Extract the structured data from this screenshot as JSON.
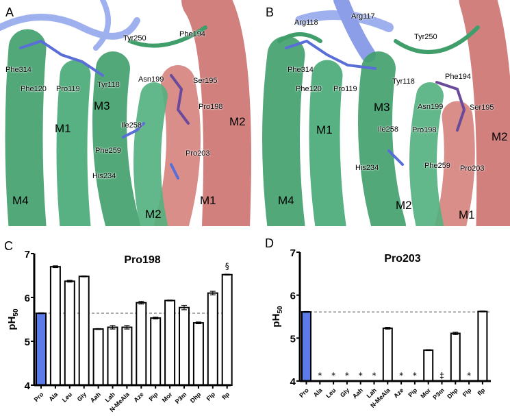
{
  "panels": {
    "A": {
      "letter": "A",
      "residues": [
        "Tyr250",
        "Phe194",
        "Phe314",
        "Phe120",
        "Pro119",
        "Tyr118",
        "Asn199",
        "Ser195",
        "Pro198",
        "Ile258",
        "Phe259",
        "Pro203",
        "His234"
      ],
      "helices": [
        "M3",
        "M2",
        "M1",
        "M4",
        "M2",
        "M1"
      ]
    },
    "B": {
      "letter": "B",
      "residues": [
        "Arg117",
        "Arg118",
        "Tyr250",
        "Phe314",
        "Tyr118",
        "Phe120",
        "Pro119",
        "Phe194",
        "Asn199",
        "Ser195",
        "Ile258",
        "Pro198",
        "His234",
        "Phe259",
        "Pro203"
      ],
      "helices": [
        "M3",
        "M1",
        "M2",
        "M4",
        "M2",
        "M1"
      ]
    }
  },
  "colors": {
    "subunit_green": "#3f9e6a",
    "subunit_red": "#c96a66",
    "loop_blue": "#8c9ee8",
    "pro_bar": "#5a7be8"
  },
  "chart_data": [
    {
      "panel": "C",
      "type": "bar",
      "title": "Pro198",
      "ylabel": "pH50",
      "ylim": [
        4,
        7
      ],
      "yticks": [
        4,
        5,
        6,
        7
      ],
      "reference_line": 5.64,
      "categories": [
        "Pro",
        "Ala",
        "Leu",
        "Gly",
        "Aah",
        "Lah",
        "N-MeAla",
        "Aze",
        "Pip",
        "Mor",
        "P3m",
        "Dhp",
        "Flp",
        "flp"
      ],
      "values": [
        5.64,
        6.7,
        6.37,
        6.48,
        5.28,
        5.32,
        5.32,
        5.88,
        5.53,
        5.93,
        5.77,
        5.42,
        6.1,
        6.52
      ],
      "errors": [
        0.01,
        0.02,
        0.02,
        0.01,
        0.01,
        0.04,
        0.04,
        0.03,
        0.02,
        0.01,
        0.05,
        0.02,
        0.04,
        0.01
      ],
      "annotations": [
        {
          "category": "flp",
          "text": "§"
        }
      ]
    },
    {
      "panel": "D",
      "type": "bar",
      "title": "Pro203",
      "ylabel": "pH50",
      "ylim": [
        4,
        7
      ],
      "yticks": [
        4,
        5,
        6,
        7
      ],
      "reference_line": 5.61,
      "categories": [
        "Pro",
        "Ala",
        "Leu",
        "Gly",
        "Aah",
        "Lah",
        "N-MeAla",
        "Aze",
        "Pip",
        "Mor",
        "P3m",
        "Dhp",
        "Flp",
        "flp"
      ],
      "values": [
        5.61,
        null,
        null,
        null,
        null,
        null,
        5.23,
        null,
        null,
        4.72,
        null,
        5.11,
        null,
        5.62
      ],
      "errors": [
        0.01,
        null,
        null,
        null,
        null,
        null,
        0.02,
        null,
        null,
        0.01,
        null,
        0.03,
        null,
        0.01
      ],
      "annotations": [
        {
          "category": "Ala",
          "text": "*"
        },
        {
          "category": "Leu",
          "text": "*"
        },
        {
          "category": "Gly",
          "text": "*"
        },
        {
          "category": "Aah",
          "text": "*"
        },
        {
          "category": "Lah",
          "text": "*"
        },
        {
          "category": "Aze",
          "text": "*"
        },
        {
          "category": "Pip",
          "text": "*"
        },
        {
          "category": "P3m",
          "text": "‡"
        },
        {
          "category": "Flp",
          "text": "*"
        }
      ]
    }
  ]
}
